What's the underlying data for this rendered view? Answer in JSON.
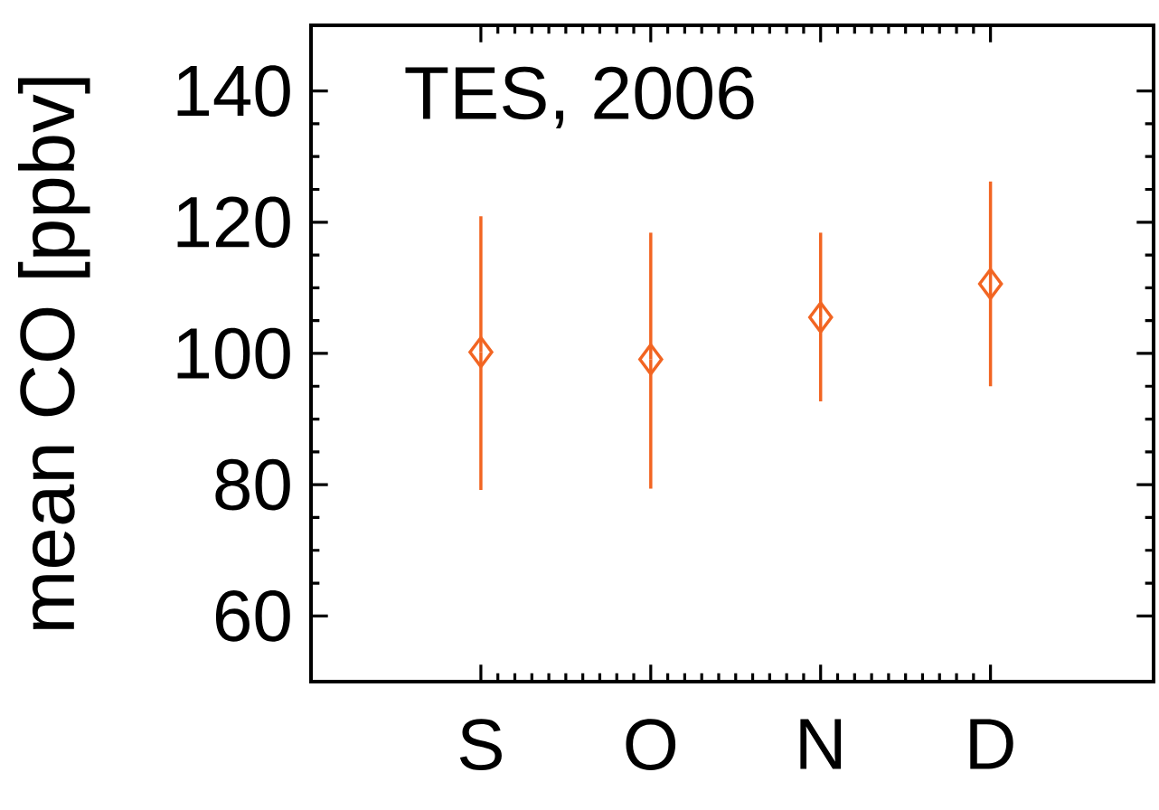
{
  "chart_data": {
    "type": "scatter",
    "ylabel": "mean CO [ppbv]",
    "annotations": [
      "TES, 2006"
    ],
    "categories": [
      "S",
      "O",
      "N",
      "D"
    ],
    "series": [
      {
        "color": "#f26522",
        "values": [
          100.2,
          99.1,
          105.5,
          110.6
        ],
        "errors": [
          [
            79.2,
            120.9
          ],
          [
            79.4,
            118.4
          ],
          [
            92.7,
            118.4
          ],
          [
            95.0,
            126.2
          ]
        ]
      }
    ],
    "ylim": [
      50,
      150
    ],
    "yticks": [
      60,
      80,
      100,
      120,
      140
    ],
    "marker": "diamond"
  }
}
